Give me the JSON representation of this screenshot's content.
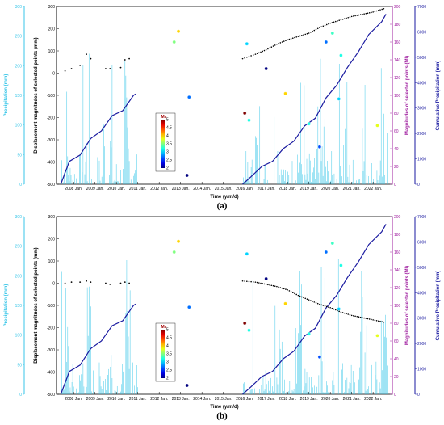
{
  "chart_data": [
    {
      "type": "line",
      "caption": "(a)",
      "xlabel": "Time (y/m/d)",
      "x_ticks": [
        "2008 Jan.",
        "2009 Jan.",
        "2010 Jan.",
        "2011 Jan.",
        "2012 Jan.",
        "2013 Jan.",
        "2014 Jan.",
        "2015 Jan.",
        "2016 Jan.",
        "2017 Jan.",
        "2018 Jan.",
        "2019 Jan.",
        "2020 Jan.",
        "2021 Jan.",
        "2022 Jan."
      ],
      "axes": {
        "precip": {
          "label": "Precipitation (mm)",
          "ylim": [
            0,
            300
          ],
          "ticks": [
            "0",
            "50",
            "100",
            "150",
            "200",
            "250",
            "300"
          ],
          "color": "#38c6e8"
        },
        "disp": {
          "label": "Displacement magnitudes of selected points (mm)",
          "ylim": [
            -500,
            300
          ],
          "ticks": [
            "-500",
            "-400",
            "-300",
            "-200",
            "-100",
            "0",
            "100",
            "200",
            "300"
          ],
          "color": "#000000"
        },
        "mag": {
          "label": "Magnitudes of selected points (Ml)",
          "ylim": [
            0,
            200
          ],
          "ticks": [
            "0",
            "20",
            "40",
            "60",
            "80",
            "100",
            "120",
            "140",
            "160",
            "180",
            "200"
          ],
          "color": "#a020a0"
        },
        "cum": {
          "label": "Cumulative Precipitation (mm)",
          "ylim": [
            0,
            7000
          ],
          "ticks": [
            "0",
            "1000",
            "2000",
            "3000",
            "4000",
            "5000",
            "6000",
            "7000"
          ],
          "color": "#1a1aa0"
        }
      },
      "colorbar": {
        "title": "Ms",
        "ticks": [
          "2",
          "2.5",
          "3",
          "3.5",
          "4",
          "4.5",
          "5"
        ]
      },
      "disp_early": [
        [
          2007.6,
          10
        ],
        [
          2007.9,
          20
        ],
        [
          2008.3,
          35
        ],
        [
          2008.6,
          85
        ],
        [
          2008.8,
          65
        ],
        [
          2009.5,
          20
        ],
        [
          2009.7,
          20
        ],
        [
          2010.2,
          25
        ],
        [
          2010.4,
          60
        ],
        [
          2010.6,
          65
        ]
      ],
      "disp_late": [
        [
          2015.9,
          65
        ],
        [
          2016.5,
          85
        ],
        [
          2017.0,
          105
        ],
        [
          2017.5,
          130
        ],
        [
          2018.0,
          150
        ],
        [
          2018.5,
          165
        ],
        [
          2019.0,
          180
        ],
        [
          2019.5,
          205
        ],
        [
          2020.0,
          225
        ],
        [
          2020.5,
          240
        ],
        [
          2021.0,
          255
        ],
        [
          2021.5,
          265
        ],
        [
          2022.0,
          275
        ],
        [
          2022.5,
          290
        ]
      ],
      "cumulative": [
        [
          2007.4,
          0
        ],
        [
          2007.8,
          900
        ],
        [
          2008.3,
          1150
        ],
        [
          2008.8,
          1800
        ],
        [
          2009.3,
          2100
        ],
        [
          2009.8,
          2700
        ],
        [
          2010.3,
          2900
        ],
        [
          2010.8,
          3500
        ],
        [
          2010.9,
          3550
        ],
        [
          2015.9,
          0
        ],
        [
          2016.3,
          300
        ],
        [
          2016.8,
          700
        ],
        [
          2017.3,
          900
        ],
        [
          2017.8,
          1400
        ],
        [
          2018.3,
          1700
        ],
        [
          2018.8,
          2300
        ],
        [
          2019.3,
          2600
        ],
        [
          2019.8,
          3400
        ],
        [
          2020.3,
          3900
        ],
        [
          2020.8,
          4600
        ],
        [
          2021.3,
          5200
        ],
        [
          2021.8,
          5900
        ],
        [
          2022.4,
          6400
        ],
        [
          2022.6,
          6700
        ]
      ],
      "events": [
        {
          "x": 2012.7,
          "mag": 160,
          "ms": 3.5
        },
        {
          "x": 2012.9,
          "mag": 172,
          "ms": 4.0
        },
        {
          "x": 2013.4,
          "mag": 98,
          "ms": 2.7
        },
        {
          "x": 2013.3,
          "mag": 10,
          "ms": 2.0
        },
        {
          "x": 2016.1,
          "mag": 158,
          "ms": 3.0
        },
        {
          "x": 2016.0,
          "mag": 80,
          "ms": 5.0
        },
        {
          "x": 2016.2,
          "mag": 72,
          "ms": 3.2
        },
        {
          "x": 2017.0,
          "mag": 130,
          "ms": 2.0
        },
        {
          "x": 2017.9,
          "mag": 102,
          "ms": 4.0
        },
        {
          "x": 2019.0,
          "mag": 68,
          "ms": 3.2
        },
        {
          "x": 2019.5,
          "mag": 42,
          "ms": 2.6
        },
        {
          "x": 2019.8,
          "mag": 160,
          "ms": 2.7
        },
        {
          "x": 2020.1,
          "mag": 170,
          "ms": 3.3
        },
        {
          "x": 2020.4,
          "mag": 96,
          "ms": 3.0
        },
        {
          "x": 2020.5,
          "mag": 145,
          "ms": 3.2
        },
        {
          "x": 2022.2,
          "mag": 66,
          "ms": 3.8
        }
      ]
    },
    {
      "type": "line",
      "caption": "(b)",
      "xlabel": "Time (y/m/d)",
      "x_ticks": [
        "2008 Jan.",
        "2009 Jan.",
        "2010 Jan.",
        "2011 Jan.",
        "2012 Jan.",
        "2013 Jan.",
        "2014 Jan.",
        "2015 Jan.",
        "2016 Jan.",
        "2017 Jan.",
        "2018 Jan.",
        "2019 Jan.",
        "2020 Jan.",
        "2021 Jan.",
        "2022 Jan."
      ],
      "axes": {
        "precip": {
          "label": "Precipitation (mm)",
          "ylim": [
            0,
            300
          ],
          "ticks": [
            "0",
            "50",
            "100",
            "150",
            "200",
            "250",
            "300"
          ],
          "color": "#38c6e8"
        },
        "disp": {
          "label": "Displacement magnitudes of selected points (mm)",
          "ylim": [
            -500,
            300
          ],
          "ticks": [
            "-500",
            "-400",
            "-300",
            "-200",
            "-100",
            "0",
            "100",
            "200",
            "300"
          ],
          "color": "#000000"
        },
        "mag": {
          "label": "Magnitudes of selected points (Ml)",
          "ylim": [
            0,
            200
          ],
          "ticks": [
            "0",
            "20",
            "40",
            "60",
            "80",
            "100",
            "120",
            "140",
            "160",
            "180",
            "200"
          ],
          "color": "#a020a0"
        },
        "cum": {
          "label": "Cumulative Precipitation (mm)",
          "ylim": [
            0,
            7000
          ],
          "ticks": [
            "0",
            "1000",
            "2000",
            "3000",
            "4000",
            "5000",
            "6000",
            "7000"
          ],
          "color": "#1a1aa0"
        }
      },
      "colorbar": {
        "title": "Ms",
        "ticks": [
          "2",
          "2.5",
          "3",
          "3.5",
          "4",
          "4.5",
          "5"
        ]
      },
      "disp_early": [
        [
          2007.6,
          0
        ],
        [
          2007.9,
          5
        ],
        [
          2008.3,
          5
        ],
        [
          2008.6,
          10
        ],
        [
          2008.8,
          5
        ],
        [
          2009.5,
          0
        ],
        [
          2009.7,
          -5
        ],
        [
          2010.2,
          0
        ],
        [
          2010.4,
          5
        ],
        [
          2010.6,
          0
        ]
      ],
      "disp_late": [
        [
          2015.9,
          10
        ],
        [
          2016.5,
          5
        ],
        [
          2017.0,
          -5
        ],
        [
          2017.5,
          -15
        ],
        [
          2018.0,
          -30
        ],
        [
          2018.5,
          -55
        ],
        [
          2019.0,
          -75
        ],
        [
          2019.5,
          -95
        ],
        [
          2020.0,
          -110
        ],
        [
          2020.5,
          -130
        ],
        [
          2021.0,
          -145
        ],
        [
          2021.5,
          -155
        ],
        [
          2022.0,
          -165
        ],
        [
          2022.5,
          -175
        ]
      ],
      "cumulative": [
        [
          2007.4,
          0
        ],
        [
          2007.8,
          900
        ],
        [
          2008.3,
          1150
        ],
        [
          2008.8,
          1800
        ],
        [
          2009.3,
          2100
        ],
        [
          2009.8,
          2700
        ],
        [
          2010.3,
          2900
        ],
        [
          2010.8,
          3500
        ],
        [
          2010.9,
          3550
        ],
        [
          2015.9,
          0
        ],
        [
          2016.3,
          300
        ],
        [
          2016.8,
          700
        ],
        [
          2017.3,
          900
        ],
        [
          2017.8,
          1400
        ],
        [
          2018.3,
          1700
        ],
        [
          2018.8,
          2300
        ],
        [
          2019.3,
          2600
        ],
        [
          2019.8,
          3400
        ],
        [
          2020.3,
          3900
        ],
        [
          2020.8,
          4600
        ],
        [
          2021.3,
          5200
        ],
        [
          2021.8,
          5900
        ],
        [
          2022.4,
          6400
        ],
        [
          2022.6,
          6700
        ]
      ],
      "events": [
        {
          "x": 2012.7,
          "mag": 160,
          "ms": 3.5
        },
        {
          "x": 2012.9,
          "mag": 172,
          "ms": 4.0
        },
        {
          "x": 2013.4,
          "mag": 98,
          "ms": 2.7
        },
        {
          "x": 2013.3,
          "mag": 10,
          "ms": 2.0
        },
        {
          "x": 2016.1,
          "mag": 158,
          "ms": 3.0
        },
        {
          "x": 2016.0,
          "mag": 80,
          "ms": 5.0
        },
        {
          "x": 2016.2,
          "mag": 72,
          "ms": 3.2
        },
        {
          "x": 2017.0,
          "mag": 130,
          "ms": 2.0
        },
        {
          "x": 2017.9,
          "mag": 102,
          "ms": 4.0
        },
        {
          "x": 2019.0,
          "mag": 68,
          "ms": 3.2
        },
        {
          "x": 2019.5,
          "mag": 42,
          "ms": 2.6
        },
        {
          "x": 2019.8,
          "mag": 160,
          "ms": 2.7
        },
        {
          "x": 2020.1,
          "mag": 170,
          "ms": 3.3
        },
        {
          "x": 2020.4,
          "mag": 96,
          "ms": 3.0
        },
        {
          "x": 2020.5,
          "mag": 145,
          "ms": 3.2
        },
        {
          "x": 2022.2,
          "mag": 66,
          "ms": 3.8
        }
      ]
    }
  ]
}
